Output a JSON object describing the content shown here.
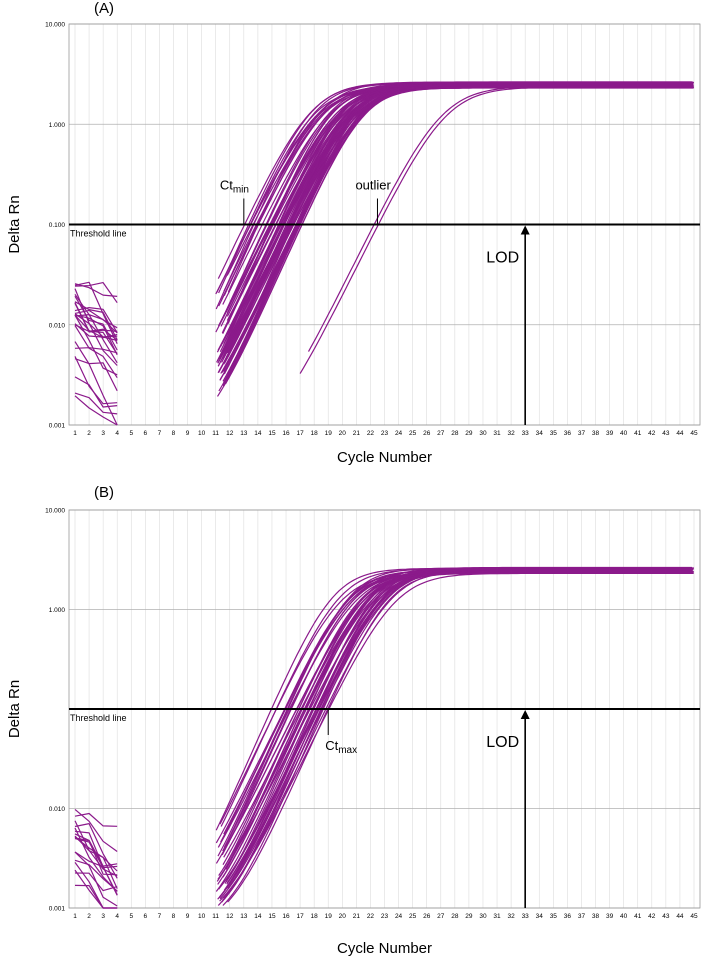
{
  "colors": {
    "curve": "#8b1a8b",
    "grid_major": "#b0b0b0",
    "grid_minor": "#dcdcdc",
    "line": "#000000"
  },
  "chart_data": [
    {
      "id": "A",
      "type": "line",
      "panel_label": "(A)",
      "xlabel": "Cycle Number",
      "ylabel": "Delta Rn",
      "yscale": "log",
      "ylim": [
        0.001,
        10
      ],
      "xlim": [
        1,
        45
      ],
      "x_ticks": [
        "1",
        "2",
        "3",
        "4",
        "5",
        "6",
        "7",
        "8",
        "9",
        "10",
        "11",
        "12",
        "13",
        "14",
        "15",
        "16",
        "17",
        "18",
        "19",
        "20",
        "21",
        "22",
        "23",
        "24",
        "25",
        "26",
        "27",
        "28",
        "29",
        "30",
        "31",
        "32",
        "33",
        "34",
        "35",
        "36",
        "37",
        "38",
        "39",
        "40",
        "41",
        "42",
        "43",
        "44",
        "45"
      ],
      "y_ticks": [
        "10.000",
        "1.000",
        "0.100",
        "0.010",
        "0.001"
      ],
      "threshold": {
        "value": 0.1,
        "label": "Threshold line"
      },
      "lod": {
        "label": "LOD",
        "cycle": 33
      },
      "annotations": [
        {
          "text": "Ct",
          "sub": "min",
          "x": 13
        },
        {
          "text": "outlier",
          "sub": "",
          "x": 22.5
        }
      ],
      "curve_ct_range": [
        13.0,
        17.1
      ],
      "outlier_ct": 22.5
    },
    {
      "id": "B",
      "type": "line",
      "panel_label": "(B)",
      "xlabel": "Cycle Number",
      "ylabel": "Delta Rn",
      "yscale": "log",
      "ylim": [
        0.001,
        10
      ],
      "xlim": [
        1,
        45
      ],
      "x_ticks": [
        "1",
        "2",
        "3",
        "4",
        "5",
        "6",
        "7",
        "8",
        "9",
        "10",
        "11",
        "12",
        "13",
        "14",
        "15",
        "16",
        "17",
        "18",
        "19",
        "20",
        "21",
        "22",
        "23",
        "24",
        "25",
        "26",
        "27",
        "28",
        "29",
        "30",
        "31",
        "32",
        "33",
        "34",
        "35",
        "36",
        "37",
        "38",
        "39",
        "40",
        "41",
        "42",
        "43",
        "44",
        "45"
      ],
      "y_ticks": [
        "10.000",
        "1.000",
        "",
        "0.010",
        "0.001"
      ],
      "threshold": {
        "value": 0.1,
        "label": "Threshold line"
      },
      "lod": {
        "label": "LOD",
        "cycle": 33
      },
      "annotations": [
        {
          "text": "Ct",
          "sub": "max",
          "x": 19
        }
      ],
      "curve_ct_range": [
        14.9,
        19.0
      ]
    }
  ]
}
